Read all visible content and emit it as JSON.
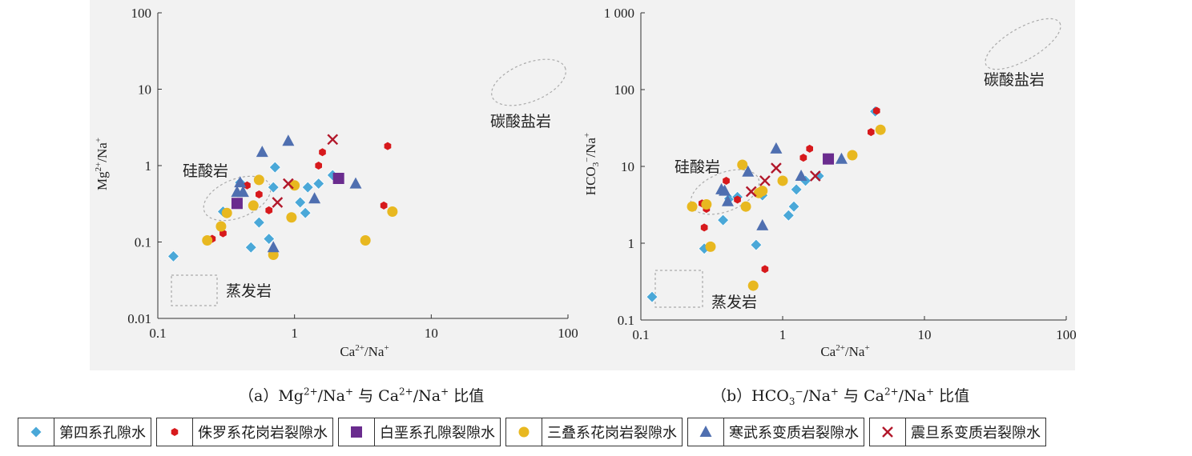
{
  "captions": {
    "a": {
      "prefix": "（a）Mg",
      "s1": "2+",
      "mid1": "/Na",
      "s2": "+",
      "mid2": "与 Ca",
      "s3": "2+",
      "mid3": "/Na",
      "s4": "+",
      "suffix": "比值"
    },
    "b": {
      "prefix": "（b）HCO",
      "s0": "3",
      "s0b": "−",
      "mid1": "/Na",
      "s2": "+",
      "mid2": "与 Ca",
      "s3": "2+",
      "mid3": "/Na",
      "s4": "+",
      "suffix": "比值"
    }
  },
  "legend": [
    {
      "key": "q",
      "label": "第四系孔隙水",
      "marker": "diamond",
      "color": "#4aa8d8"
    },
    {
      "key": "j",
      "label": "侏罗系花岗岩裂隙水",
      "marker": "hexagon",
      "color": "#d7191c"
    },
    {
      "key": "k",
      "label": "白垩系孔隙裂隙水",
      "marker": "square",
      "color": "#6a2c8e"
    },
    {
      "key": "t",
      "label": "三叠系花岗岩裂隙水",
      "marker": "circle",
      "color": "#e8b820"
    },
    {
      "key": "c",
      "label": "寒武系变质岩裂隙水",
      "marker": "triangle",
      "color": "#4f6fb0"
    },
    {
      "key": "z",
      "label": "震旦系变质岩裂隙水",
      "marker": "x",
      "color": "#b2182b"
    }
  ],
  "chart_data": [
    {
      "type": "scatter",
      "xscale": "log",
      "yscale": "log",
      "xlim": [
        0.1,
        100
      ],
      "ylim": [
        0.01,
        100
      ],
      "xticks": [
        "0.1",
        "1",
        "10",
        "100"
      ],
      "yticks": [
        "0.01",
        "0.1",
        "1",
        "10",
        "100"
      ],
      "xlabel": "Ca2+/Na+",
      "ylabel": "Mg2+/Na+",
      "regions": [
        {
          "label": "碳酸盐岩",
          "shape": "ellipse"
        },
        {
          "label": "硅酸岩",
          "shape": "ellipse"
        },
        {
          "label": "蒸发岩",
          "shape": "rect"
        }
      ],
      "series": [
        {
          "key": "q",
          "points": [
            [
              0.13,
              0.065
            ],
            [
              0.3,
              0.25
            ],
            [
              0.4,
              0.6
            ],
            [
              0.48,
              0.085
            ],
            [
              0.55,
              0.18
            ],
            [
              0.65,
              0.11
            ],
            [
              0.7,
              0.52
            ],
            [
              0.72,
              0.95
            ],
            [
              1.1,
              0.33
            ],
            [
              1.2,
              0.24
            ],
            [
              1.25,
              0.52
            ],
            [
              1.5,
              0.58
            ],
            [
              1.9,
              0.75
            ]
          ]
        },
        {
          "key": "j",
          "points": [
            [
              0.25,
              0.11
            ],
            [
              0.3,
              0.13
            ],
            [
              0.45,
              0.55
            ],
            [
              0.55,
              0.42
            ],
            [
              0.65,
              0.26
            ],
            [
              1.5,
              1.0
            ],
            [
              1.6,
              1.5
            ],
            [
              4.5,
              0.3
            ],
            [
              4.8,
              1.8
            ]
          ]
        },
        {
          "key": "k",
          "points": [
            [
              0.38,
              0.32
            ],
            [
              2.1,
              0.68
            ]
          ]
        },
        {
          "key": "t",
          "points": [
            [
              0.23,
              0.105
            ],
            [
              0.29,
              0.16
            ],
            [
              0.32,
              0.24
            ],
            [
              0.5,
              0.3
            ],
            [
              0.55,
              0.65
            ],
            [
              0.7,
              0.068
            ],
            [
              0.95,
              0.21
            ],
            [
              1.0,
              0.55
            ],
            [
              3.3,
              0.105
            ],
            [
              5.2,
              0.25
            ]
          ]
        },
        {
          "key": "c",
          "points": [
            [
              0.38,
              0.45
            ],
            [
              0.4,
              0.6
            ],
            [
              0.42,
              0.45
            ],
            [
              0.58,
              1.5
            ],
            [
              0.7,
              0.085
            ],
            [
              0.9,
              2.1
            ],
            [
              1.4,
              0.37
            ],
            [
              2.8,
              0.58
            ]
          ]
        },
        {
          "key": "z",
          "points": [
            [
              0.75,
              0.33
            ],
            [
              0.9,
              0.58
            ],
            [
              1.9,
              2.2
            ]
          ]
        }
      ]
    },
    {
      "type": "scatter",
      "xscale": "log",
      "yscale": "log",
      "xlim": [
        0.1,
        100
      ],
      "ylim": [
        0.1,
        1000
      ],
      "xticks": [
        "0.1",
        "1",
        "10",
        "100"
      ],
      "yticks": [
        "0.1",
        "1",
        "10",
        "100",
        "1 000"
      ],
      "xlabel": "Ca2+/Na+",
      "ylabel": "HCO3−/Na+",
      "regions": [
        {
          "label": "碳酸盐岩",
          "shape": "ellipse"
        },
        {
          "label": "硅酸岩",
          "shape": "ellipse"
        },
        {
          "label": "蒸发岩",
          "shape": "rect"
        }
      ],
      "series": [
        {
          "key": "q",
          "points": [
            [
              0.12,
              0.2
            ],
            [
              0.28,
              0.85
            ],
            [
              0.38,
              2.0
            ],
            [
              0.42,
              3.8
            ],
            [
              0.48,
              4.0
            ],
            [
              0.65,
              0.95
            ],
            [
              0.72,
              4.2
            ],
            [
              1.1,
              2.3
            ],
            [
              1.2,
              3.0
            ],
            [
              1.25,
              5.0
            ],
            [
              1.45,
              6.5
            ],
            [
              1.8,
              7.5
            ],
            [
              4.5,
              52
            ]
          ]
        },
        {
          "key": "j",
          "points": [
            [
              0.27,
              3.3
            ],
            [
              0.28,
              1.6
            ],
            [
              0.29,
              2.8
            ],
            [
              0.4,
              6.5
            ],
            [
              0.48,
              3.7
            ],
            [
              0.75,
              0.46
            ],
            [
              1.4,
              13
            ],
            [
              1.55,
              17
            ],
            [
              4.2,
              28
            ],
            [
              4.6,
              53
            ]
          ]
        },
        {
          "key": "k",
          "points": [
            [
              2.1,
              12.5
            ]
          ]
        },
        {
          "key": "t",
          "points": [
            [
              0.23,
              3.0
            ],
            [
              0.29,
              3.2
            ],
            [
              0.31,
              0.9
            ],
            [
              0.52,
              10.5
            ],
            [
              0.55,
              3.0
            ],
            [
              0.62,
              0.28
            ],
            [
              0.68,
              4.5
            ],
            [
              0.72,
              4.8
            ],
            [
              1.0,
              6.5
            ],
            [
              3.1,
              14
            ],
            [
              4.9,
              30
            ]
          ]
        },
        {
          "key": "c",
          "points": [
            [
              0.37,
              5.0
            ],
            [
              0.39,
              4.8
            ],
            [
              0.41,
              3.5
            ],
            [
              0.57,
              8.5
            ],
            [
              0.72,
              1.7
            ],
            [
              0.9,
              17
            ],
            [
              1.35,
              7.5
            ],
            [
              2.6,
              12.5
            ]
          ]
        },
        {
          "key": "z",
          "points": [
            [
              0.6,
              4.7
            ],
            [
              0.75,
              6.5
            ],
            [
              0.9,
              9.5
            ],
            [
              1.7,
              7.5
            ]
          ]
        }
      ]
    }
  ]
}
